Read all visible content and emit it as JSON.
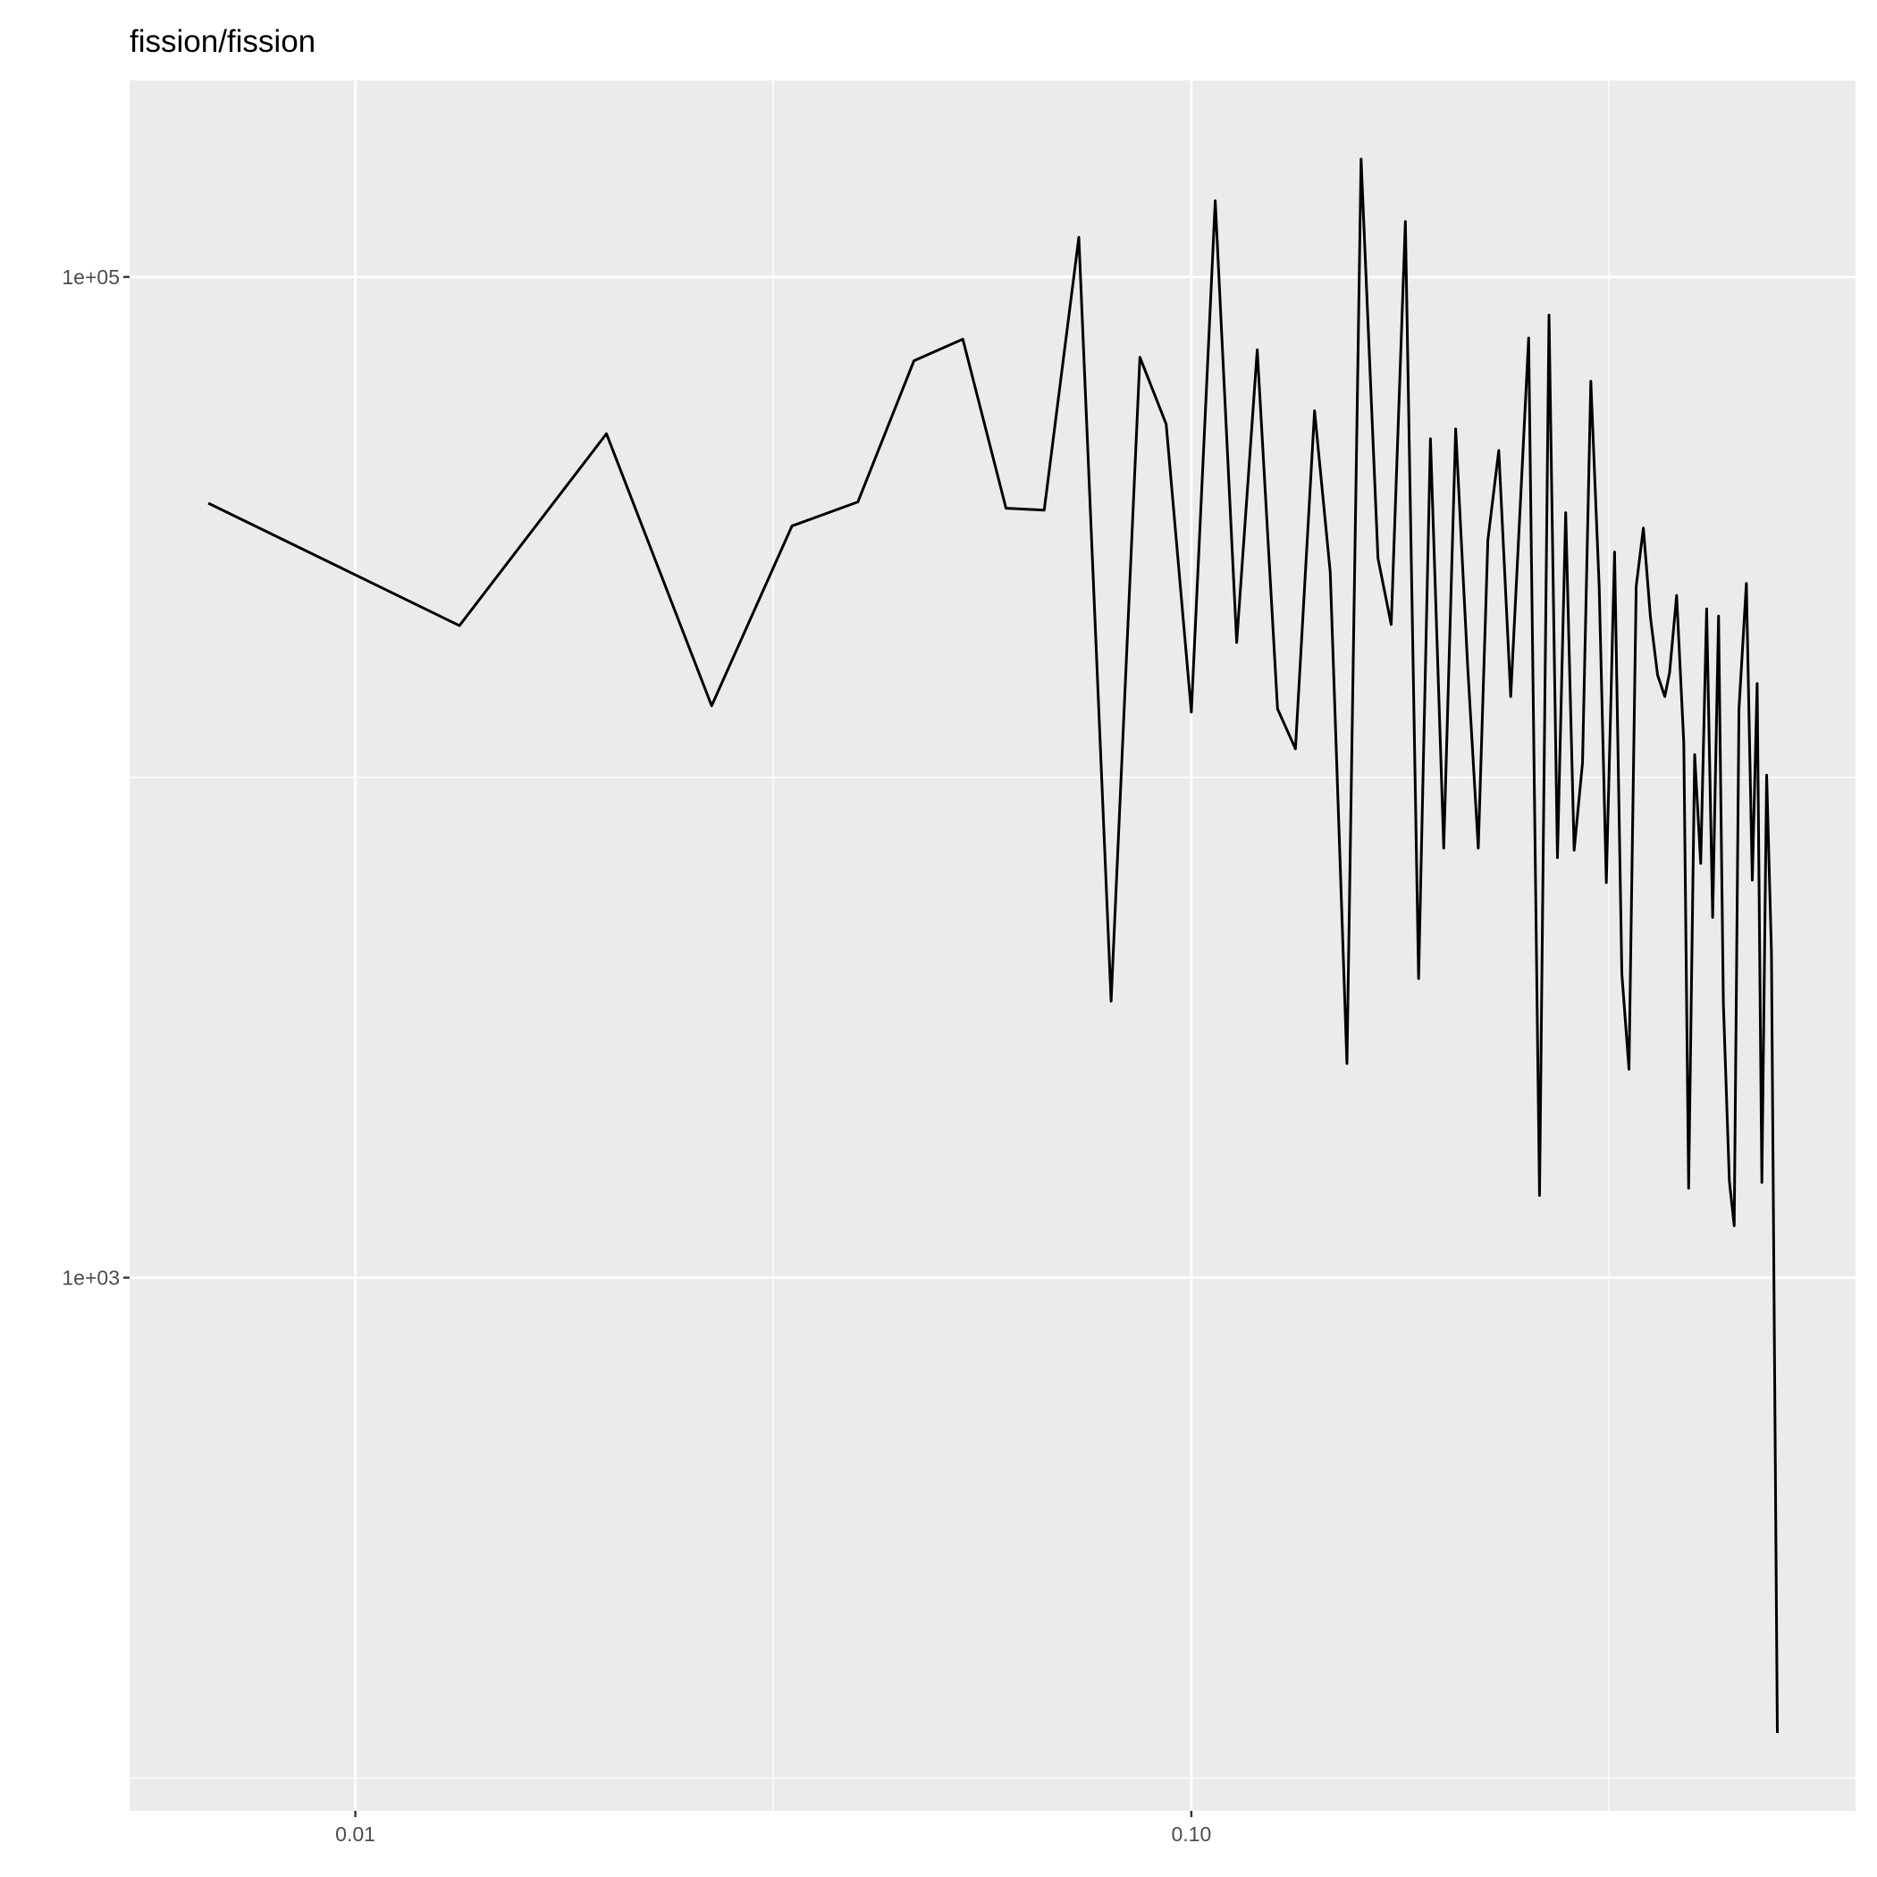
{
  "chart_data": {
    "type": "line",
    "title": "fission/fission",
    "x": [
      0.00667,
      0.01332,
      0.01997,
      0.02668,
      0.03329,
      0.03991,
      0.04658,
      0.05329,
      0.06002,
      0.06668,
      0.07335,
      0.08017,
      0.08679,
      0.0933,
      0.1,
      0.1068,
      0.1133,
      0.1199,
      0.1268,
      0.1332,
      0.1404,
      0.1466,
      0.1535,
      0.1596,
      0.1672,
      0.1734,
      0.1803,
      0.187,
      0.1932,
      0.2004,
      0.2071,
      0.214,
      0.2204,
      0.2263,
      0.2332,
      0.241,
      0.2532,
      0.2609,
      0.2678,
      0.2741,
      0.2804,
      0.287,
      0.2937,
      0.3005,
      0.3075,
      0.3136,
      0.3208,
      0.3273,
      0.3338,
      0.3405,
      0.3473,
      0.3541,
      0.3612,
      0.3684,
      0.3733,
      0.3806,
      0.3882,
      0.3934,
      0.4,
      0.4067,
      0.4134,
      0.4203,
      0.4272,
      0.4329,
      0.4401,
      0.446,
      0.4519,
      0.4612,
      0.4688,
      0.4751,
      0.4813,
      0.4877,
      0.4942,
      0.5023
    ],
    "values": [
      35300,
      20100,
      48600,
      13900,
      31800,
      35500,
      68000,
      75100,
      34500,
      34200,
      120000,
      3570,
      69100,
      50800,
      13500,
      142000,
      18600,
      71500,
      13700,
      11400,
      54000,
      25700,
      2680,
      172000,
      27400,
      20200,
      129000,
      3960,
      47500,
      7220,
      49700,
      16800,
      7220,
      29800,
      45000,
      14500,
      75500,
      1460,
      83900,
      6910,
      33800,
      7150,
      10700,
      61900,
      24000,
      6160,
      28200,
      4050,
      2610,
      24100,
      31500,
      20900,
      16000,
      14500,
      16200,
      23100,
      11700,
      1510,
      11100,
      6730,
      21700,
      5250,
      21000,
      3530,
      1560,
      1270,
      13700,
      24400,
      6230,
      15400,
      1550,
      10100,
      4470,
      123
    ],
    "color": "#000000",
    "xlog": true,
    "ylog": true,
    "xlim": [
      0.00537,
      0.623
    ],
    "ylim": [
      86,
      247000
    ],
    "xticks": [
      0.01,
      {
        "value": 0.1,
        "label": "0.10"
      }
    ],
    "yticks": [
      {
        "value": 1000,
        "label": "1e+03"
      },
      {
        "value": 100000,
        "label": "1e+05"
      }
    ],
    "x_minor_grid": [
      0.0316,
      0.316
    ],
    "y_minor_grid": [
      100,
      10000
    ],
    "grid": true
  }
}
